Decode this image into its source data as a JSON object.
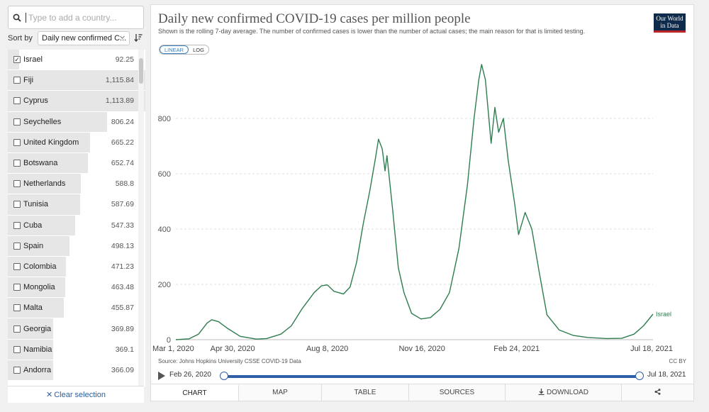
{
  "sidebar": {
    "search_placeholder": "Type to add a country...",
    "sort_label": "Sort by",
    "sort_value": "Daily new confirmed C...",
    "clear_label": "Clear selection",
    "countries": [
      {
        "name": "Israel",
        "value": "92.25",
        "checked": true,
        "bar": 0.08
      },
      {
        "name": "Fiji",
        "value": "1,115.84",
        "checked": false,
        "bar": 1.0
      },
      {
        "name": "Cyprus",
        "value": "1,113.89",
        "checked": false,
        "bar": 0.998
      },
      {
        "name": "Seychelles",
        "value": "806.24",
        "checked": false,
        "bar": 0.72
      },
      {
        "name": "United Kingdom",
        "value": "665.22",
        "checked": false,
        "bar": 0.6
      },
      {
        "name": "Botswana",
        "value": "652.74",
        "checked": false,
        "bar": 0.585
      },
      {
        "name": "Netherlands",
        "value": "588.8",
        "checked": false,
        "bar": 0.53
      },
      {
        "name": "Tunisia",
        "value": "587.69",
        "checked": false,
        "bar": 0.527
      },
      {
        "name": "Cuba",
        "value": "547.33",
        "checked": false,
        "bar": 0.49
      },
      {
        "name": "Spain",
        "value": "498.13",
        "checked": false,
        "bar": 0.446
      },
      {
        "name": "Colombia",
        "value": "471.23",
        "checked": false,
        "bar": 0.422
      },
      {
        "name": "Mongolia",
        "value": "463.48",
        "checked": false,
        "bar": 0.415
      },
      {
        "name": "Malta",
        "value": "455.87",
        "checked": false,
        "bar": 0.409
      },
      {
        "name": "Georgia",
        "value": "369.89",
        "checked": false,
        "bar": 0.33
      },
      {
        "name": "Namibia",
        "value": "369.1",
        "checked": false,
        "bar": 0.33
      },
      {
        "name": "Andorra",
        "value": "366.09",
        "checked": false,
        "bar": 0.328
      }
    ]
  },
  "header": {
    "title": "Daily new confirmed COVID-19 cases per million people",
    "subtitle": "Shown is the rolling 7-day average. The number of confirmed cases is lower than the number of actual cases; the main reason for that is limited testing.",
    "logo_line1": "Our World",
    "logo_line2": "in Data",
    "toggle_linear": "LINEAR",
    "toggle_log": "LOG"
  },
  "footer": {
    "source": "Source: Johns Hopkins University CSSE COVID-19 Data",
    "license": "CC BY"
  },
  "timeline": {
    "start": "Feb 26, 2020",
    "end": "Jul 18, 2021"
  },
  "tabs": [
    "CHART",
    "MAP",
    "TABLE",
    "SOURCES",
    "DOWNLOAD"
  ],
  "colors": {
    "line": "#2e7d4f",
    "accent": "#2f5fa7",
    "grid": "#dddddd"
  },
  "chart_data": {
    "type": "line",
    "title": "Daily new confirmed COVID-19 cases per million people",
    "scale": "linear",
    "ylim": [
      0,
      1000
    ],
    "xlim": [
      "2020-03-01",
      "2021-07-18"
    ],
    "yticks": [
      0,
      200,
      400,
      600,
      800
    ],
    "xticks": [
      "Mar 1, 2020",
      "Apr 30, 2020",
      "Aug 8, 2020",
      "Nov 16, 2020",
      "Feb 24, 2021",
      "Jul 18, 2021"
    ],
    "grid": true,
    "series": [
      {
        "name": "Israel",
        "end_value": 92.25,
        "points": [
          [
            "2020-03-01",
            0
          ],
          [
            "2020-03-15",
            3
          ],
          [
            "2020-03-25",
            20
          ],
          [
            "2020-04-03",
            60
          ],
          [
            "2020-04-08",
            72
          ],
          [
            "2020-04-15",
            65
          ],
          [
            "2020-04-25",
            40
          ],
          [
            "2020-05-08",
            12
          ],
          [
            "2020-05-25",
            2
          ],
          [
            "2020-06-05",
            4
          ],
          [
            "2020-06-20",
            20
          ],
          [
            "2020-07-01",
            50
          ],
          [
            "2020-07-12",
            110
          ],
          [
            "2020-07-25",
            170
          ],
          [
            "2020-08-02",
            195
          ],
          [
            "2020-08-08",
            198
          ],
          [
            "2020-08-15",
            175
          ],
          [
            "2020-08-25",
            165
          ],
          [
            "2020-09-01",
            190
          ],
          [
            "2020-09-08",
            280
          ],
          [
            "2020-09-15",
            420
          ],
          [
            "2020-09-22",
            540
          ],
          [
            "2020-09-28",
            660
          ],
          [
            "2020-10-01",
            725
          ],
          [
            "2020-10-05",
            690
          ],
          [
            "2020-10-08",
            610
          ],
          [
            "2020-10-10",
            665
          ],
          [
            "2020-10-16",
            470
          ],
          [
            "2020-10-22",
            260
          ],
          [
            "2020-10-28",
            170
          ],
          [
            "2020-11-05",
            95
          ],
          [
            "2020-11-15",
            75
          ],
          [
            "2020-11-25",
            80
          ],
          [
            "2020-12-05",
            110
          ],
          [
            "2020-12-15",
            170
          ],
          [
            "2020-12-25",
            330
          ],
          [
            "2021-01-03",
            560
          ],
          [
            "2021-01-10",
            800
          ],
          [
            "2021-01-15",
            940
          ],
          [
            "2021-01-18",
            995
          ],
          [
            "2021-01-22",
            940
          ],
          [
            "2021-01-28",
            710
          ],
          [
            "2021-02-01",
            840
          ],
          [
            "2021-02-05",
            750
          ],
          [
            "2021-02-10",
            800
          ],
          [
            "2021-02-15",
            650
          ],
          [
            "2021-02-22",
            490
          ],
          [
            "2021-02-26",
            380
          ],
          [
            "2021-03-05",
            460
          ],
          [
            "2021-03-12",
            400
          ],
          [
            "2021-03-20",
            240
          ],
          [
            "2021-03-28",
            90
          ],
          [
            "2021-04-10",
            35
          ],
          [
            "2021-04-25",
            15
          ],
          [
            "2021-05-10",
            8
          ],
          [
            "2021-05-30",
            4
          ],
          [
            "2021-06-15",
            5
          ],
          [
            "2021-06-28",
            20
          ],
          [
            "2021-07-08",
            50
          ],
          [
            "2021-07-18",
            92.25
          ]
        ]
      }
    ]
  }
}
